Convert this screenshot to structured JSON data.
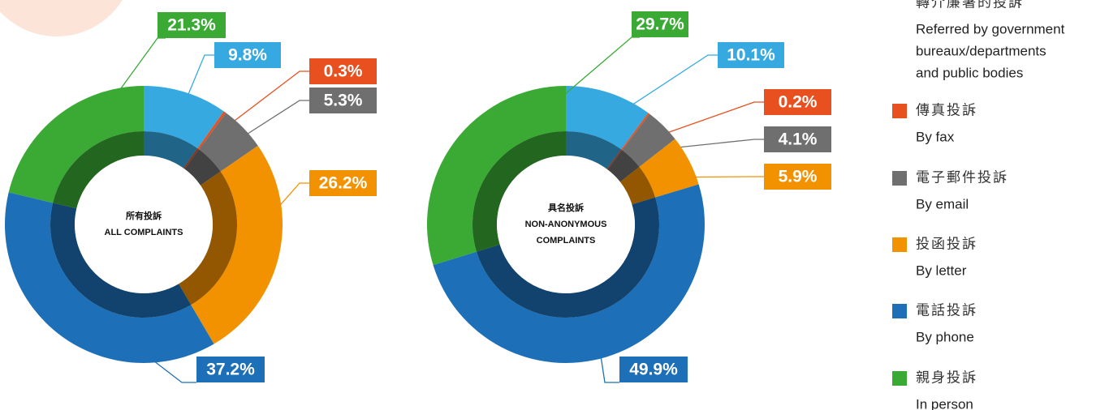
{
  "chart_data": [
    {
      "type": "donut",
      "center_label": [
        "所有投訴",
        "ALL COMPLAINTS"
      ],
      "values": [
        9.8,
        0.3,
        5.3,
        26.2,
        37.2,
        21.3
      ],
      "value_labels": [
        "9.8%",
        "0.3%",
        "5.3%",
        "26.2%",
        "37.2%",
        "21.3%"
      ]
    },
    {
      "type": "donut",
      "center_label": [
        "具名投訴",
        "NON-ANONYMOUS",
        "COMPLAINTS"
      ],
      "values": [
        10.1,
        0.2,
        4.1,
        5.9,
        49.9,
        29.7
      ],
      "value_labels": [
        "10.1%",
        "0.2%",
        "4.1%",
        "5.9%",
        "49.9%",
        "29.7%"
      ]
    }
  ],
  "legend": {
    "items": [
      {
        "zh": "轉介廉署的投訴",
        "en": [
          "Referred by government",
          "bureaux/departments",
          "and public bodies"
        ],
        "color": "#36a9e1"
      },
      {
        "zh": "傳真投訴",
        "en": [
          "By fax"
        ],
        "color": "#e8501f"
      },
      {
        "zh": "電子郵件投訴",
        "en": [
          "By email"
        ],
        "color": "#6f6f6f"
      },
      {
        "zh": "投函投訴",
        "en": [
          "By letter"
        ],
        "color": "#f39200"
      },
      {
        "zh": "電話投訴",
        "en": [
          "By phone"
        ],
        "color": "#1d70b7"
      },
      {
        "zh": "親身投訴",
        "en": [
          "In person"
        ],
        "color": "#3aaa35"
      }
    ]
  }
}
